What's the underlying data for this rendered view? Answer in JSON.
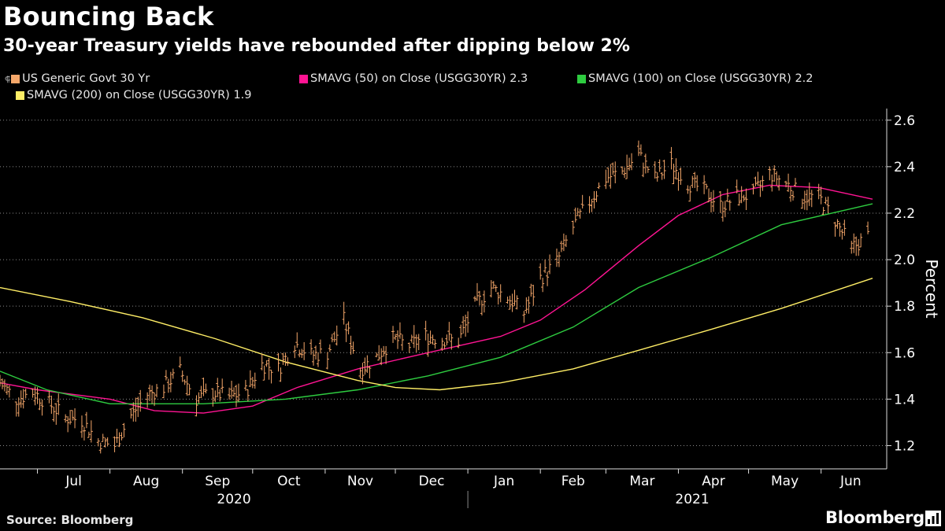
{
  "header": {
    "title": "Bouncing Back",
    "subtitle": "30-year Treasury yields have rebounded after dipping below 2%"
  },
  "legend": [
    {
      "label": "US Generic Govt 30 Yr",
      "color": "#f5a76a",
      "icon": "ohlc-bar-icon"
    },
    {
      "label": "SMAVG (50)  on Close (USGG30YR) 2.3",
      "color": "#ff1493"
    },
    {
      "label": "SMAVG (100)  on Close (USGG30YR) 2.2",
      "color": "#2ecc40"
    },
    {
      "label": "SMAVG (200)  on Close (USGG30YR) 1.9",
      "color": "#ffee66"
    }
  ],
  "footer": {
    "source": "Source: Bloomberg",
    "brand": "Bloomberg"
  },
  "chart_data": {
    "type": "line",
    "y_axis": {
      "label": "Percent",
      "ticks": [
        1.2,
        1.4,
        1.6,
        1.8,
        2.0,
        2.2,
        2.4,
        2.6
      ],
      "range": [
        1.1,
        2.65
      ],
      "side": "right"
    },
    "x_axis": {
      "months": [
        "Jul",
        "Aug",
        "Sep",
        "Oct",
        "Nov",
        "Dec",
        "Jan",
        "Feb",
        "Mar",
        "Apr",
        "May",
        "Jun"
      ],
      "years": [
        "2020",
        "2021"
      ],
      "range": [
        "2020-06-15",
        "2021-06-23"
      ]
    },
    "grid": true,
    "series": [
      {
        "name": "US Generic Govt 30 Yr",
        "style": "ohlc-bars",
        "color": "#f5a76a",
        "points": [
          [
            "2020-06-15",
            1.47
          ],
          [
            "2020-06-22",
            1.4
          ],
          [
            "2020-06-29",
            1.43
          ],
          [
            "2020-07-06",
            1.38
          ],
          [
            "2020-07-13",
            1.32
          ],
          [
            "2020-07-20",
            1.31
          ],
          [
            "2020-07-27",
            1.22
          ],
          [
            "2020-08-03",
            1.2
          ],
          [
            "2020-08-10",
            1.33
          ],
          [
            "2020-08-17",
            1.42
          ],
          [
            "2020-08-24",
            1.45
          ],
          [
            "2020-08-31",
            1.52
          ],
          [
            "2020-09-07",
            1.4
          ],
          [
            "2020-09-14",
            1.43
          ],
          [
            "2020-09-21",
            1.41
          ],
          [
            "2020-09-28",
            1.43
          ],
          [
            "2020-10-05",
            1.55
          ],
          [
            "2020-10-12",
            1.53
          ],
          [
            "2020-10-19",
            1.64
          ],
          [
            "2020-10-26",
            1.59
          ],
          [
            "2020-11-02",
            1.6
          ],
          [
            "2020-11-09",
            1.74
          ],
          [
            "2020-11-16",
            1.53
          ],
          [
            "2020-11-23",
            1.58
          ],
          [
            "2020-11-30",
            1.66
          ],
          [
            "2020-12-07",
            1.63
          ],
          [
            "2020-12-14",
            1.67
          ],
          [
            "2020-12-21",
            1.66
          ],
          [
            "2020-12-28",
            1.65
          ],
          [
            "2021-01-04",
            1.8
          ],
          [
            "2021-01-11",
            1.88
          ],
          [
            "2021-01-18",
            1.84
          ],
          [
            "2021-01-25",
            1.77
          ],
          [
            "2021-02-01",
            1.92
          ],
          [
            "2021-02-08",
            1.99
          ],
          [
            "2021-02-15",
            2.14
          ],
          [
            "2021-02-22",
            2.25
          ],
          [
            "2021-03-01",
            2.35
          ],
          [
            "2021-03-08",
            2.38
          ],
          [
            "2021-03-15",
            2.45
          ],
          [
            "2021-03-22",
            2.35
          ],
          [
            "2021-03-29",
            2.41
          ],
          [
            "2021-04-05",
            2.33
          ],
          [
            "2021-04-12",
            2.3
          ],
          [
            "2021-04-19",
            2.23
          ],
          [
            "2021-04-26",
            2.27
          ],
          [
            "2021-05-03",
            2.28
          ],
          [
            "2021-05-10",
            2.37
          ],
          [
            "2021-05-17",
            2.33
          ],
          [
            "2021-05-24",
            2.27
          ],
          [
            "2021-05-31",
            2.27
          ],
          [
            "2021-06-07",
            2.17
          ],
          [
            "2021-06-14",
            2.05
          ],
          [
            "2021-06-21",
            2.1
          ]
        ]
      },
      {
        "name": "SMAVG (50)  on Close (USGG30YR) 2.3",
        "color": "#ff1493",
        "points": [
          [
            "2020-06-15",
            1.47
          ],
          [
            "2020-07-01",
            1.44
          ],
          [
            "2020-08-01",
            1.4
          ],
          [
            "2020-08-20",
            1.35
          ],
          [
            "2020-09-10",
            1.34
          ],
          [
            "2020-10-01",
            1.37
          ],
          [
            "2020-10-20",
            1.45
          ],
          [
            "2020-11-15",
            1.53
          ],
          [
            "2020-12-15",
            1.6
          ],
          [
            "2021-01-15",
            1.67
          ],
          [
            "2021-02-01",
            1.74
          ],
          [
            "2021-02-20",
            1.87
          ],
          [
            "2021-03-15",
            2.06
          ],
          [
            "2021-04-01",
            2.19
          ],
          [
            "2021-04-20",
            2.28
          ],
          [
            "2021-05-10",
            2.32
          ],
          [
            "2021-05-31",
            2.31
          ],
          [
            "2021-06-23",
            2.26
          ]
        ]
      },
      {
        "name": "SMAVG (100)  on Close (USGG30YR) 2.2",
        "color": "#2ecc40",
        "points": [
          [
            "2020-06-15",
            1.52
          ],
          [
            "2020-07-05",
            1.44
          ],
          [
            "2020-08-01",
            1.38
          ],
          [
            "2020-09-10",
            1.38
          ],
          [
            "2020-10-15",
            1.4
          ],
          [
            "2020-11-15",
            1.44
          ],
          [
            "2020-12-15",
            1.5
          ],
          [
            "2021-01-15",
            1.58
          ],
          [
            "2021-02-15",
            1.71
          ],
          [
            "2021-03-15",
            1.88
          ],
          [
            "2021-04-15",
            2.01
          ],
          [
            "2021-05-15",
            2.15
          ],
          [
            "2021-06-23",
            2.24
          ]
        ]
      },
      {
        "name": "SMAVG (200)  on Close (USGG30YR) 1.9",
        "color": "#ffee66",
        "points": [
          [
            "2020-06-15",
            1.88
          ],
          [
            "2020-07-15",
            1.82
          ],
          [
            "2020-08-15",
            1.75
          ],
          [
            "2020-09-15",
            1.66
          ],
          [
            "2020-10-15",
            1.56
          ],
          [
            "2020-11-15",
            1.48
          ],
          [
            "2020-12-01",
            1.45
          ],
          [
            "2020-12-20",
            1.44
          ],
          [
            "2021-01-15",
            1.47
          ],
          [
            "2021-02-15",
            1.53
          ],
          [
            "2021-03-15",
            1.61
          ],
          [
            "2021-04-15",
            1.7
          ],
          [
            "2021-05-15",
            1.79
          ],
          [
            "2021-06-23",
            1.92
          ]
        ]
      }
    ]
  }
}
